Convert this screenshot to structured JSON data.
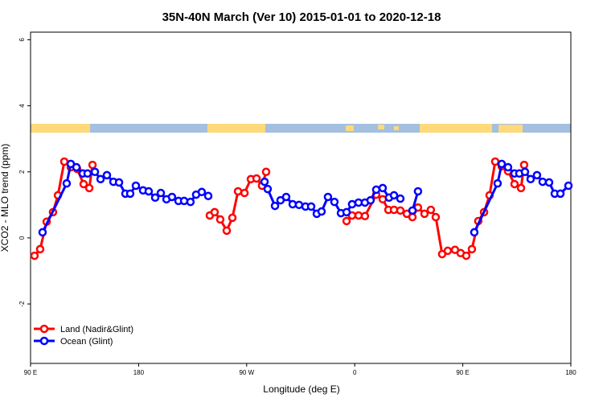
{
  "chart_data": {
    "type": "line",
    "title": "35N-40N March (Ver 10)   2015-01-01 to 2020-12-18",
    "xlabel": "Longitude (deg E)",
    "ylabel": "XCO2 - MLO trend (ppm)",
    "xlim": [
      90,
      540
    ],
    "xticks": [
      {
        "value": 90,
        "label": "90 E"
      },
      180,
      {
        "value": 270,
        "label": "90 W"
      },
      {
        "value": 360,
        "label": "0"
      },
      {
        "value": 450,
        "label": "90 E"
      },
      {
        "value": 540,
        "label": "180"
      }
    ],
    "ylim": [
      -3.8,
      6.23
    ],
    "yticks": [
      -2,
      0,
      2,
      4,
      6
    ],
    "legend": "bottom-left",
    "series": [
      {
        "name": "Land (Nadir&Glint)",
        "color": "#ff0000",
        "x": [
          93.3,
          98.0,
          103.4,
          108.7,
          112.8,
          118.1,
          123.5,
          128.8,
          134.2,
          138.9,
          141.6,
          null,
          239.3,
          243.3,
          248.0,
          253.4,
          258.1,
          262.8,
          268.2,
          273.5,
          278.2,
          282.8,
          286.2,
          null,
          353.2,
          357.8,
          363.2,
          368.5,
          377.9,
          383.3,
          388.0,
          392.7,
          398.0,
          403.4,
          408.1,
          412.7,
          418.1,
          423.4,
          427.5,
          432.8,
          437.5,
          443.5,
          448.2,
          452.9,
          457.6,
          462.9,
          467.7,
          472.3,
          477.0,
          482.4,
          487.7,
          493.1,
          498.5,
          501.1
        ],
        "values": [
          -0.54,
          -0.34,
          0.49,
          0.78,
          1.29,
          2.31,
          2.14,
          2.09,
          1.63,
          1.51,
          2.21,
          null,
          0.68,
          0.78,
          0.56,
          0.22,
          0.61,
          1.41,
          1.36,
          1.78,
          1.8,
          1.58,
          2.0,
          null,
          0.51,
          0.68,
          0.68,
          0.66,
          1.31,
          1.17,
          0.85,
          0.85,
          0.83,
          0.73,
          0.63,
          0.92,
          0.73,
          0.85,
          0.63,
          -0.49,
          -0.39,
          -0.36,
          -0.46,
          -0.54,
          -0.34,
          0.51,
          0.78,
          1.29,
          2.31,
          2.17,
          2.02,
          1.63,
          1.51,
          2.21
        ]
      },
      {
        "name": "Ocean (Glint)",
        "color": "#0000ff",
        "x": [
          100.0,
          120.1,
          123.5,
          128.2,
          133.5,
          137.5,
          143.6,
          148.3,
          153.6,
          159.0,
          163.7,
          169.0,
          173.0,
          177.7,
          183.7,
          188.4,
          193.8,
          198.5,
          203.2,
          207.8,
          213.2,
          217.9,
          223.2,
          227.9,
          232.6,
          238.0,
          null,
          284.9,
          287.5,
          293.6,
          298.2,
          302.9,
          308.3,
          313.6,
          319.0,
          323.7,
          328.4,
          332.4,
          337.7,
          343.1,
          348.5,
          353.2,
          357.8,
          363.2,
          368.5,
          373.2,
          377.9,
          383.3,
          388.6,
          392.7,
          398.0,
          null,
          408.1,
          412.7,
          null,
          459.6,
          479.0,
          482.4,
          487.7,
          493.1,
          497.1,
          501.8,
          506.5,
          511.8,
          516.5,
          521.9,
          526.6,
          531.3,
          538.0
        ],
        "values": [
          0.17,
          1.65,
          2.24,
          2.14,
          1.95,
          1.95,
          2.0,
          1.78,
          1.9,
          1.7,
          1.68,
          1.34,
          1.34,
          1.58,
          1.44,
          1.41,
          1.22,
          1.36,
          1.17,
          1.24,
          1.12,
          1.12,
          1.09,
          1.31,
          1.39,
          1.27,
          null,
          1.7,
          1.48,
          0.97,
          1.14,
          1.24,
          1.02,
          1.0,
          0.95,
          0.95,
          0.73,
          0.8,
          1.24,
          1.09,
          0.75,
          0.78,
          1.02,
          1.07,
          1.07,
          1.14,
          1.46,
          1.51,
          1.22,
          1.29,
          1.19,
          null,
          0.83,
          1.41,
          null,
          0.17,
          1.65,
          2.24,
          2.14,
          1.95,
          1.95,
          2.0,
          1.78,
          1.9,
          1.7,
          1.68,
          1.34,
          1.34,
          1.58
        ]
      }
    ]
  }
}
